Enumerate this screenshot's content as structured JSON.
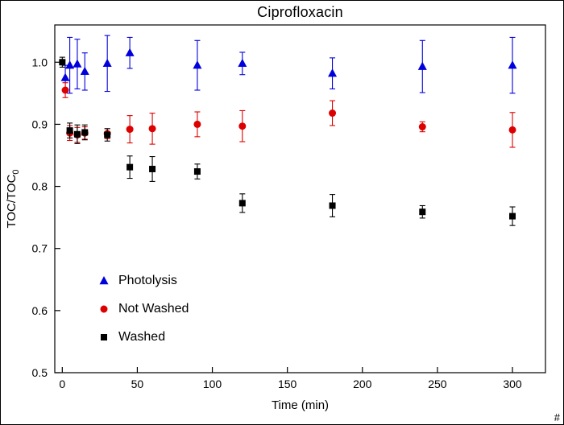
{
  "labels": {
    "ylabel_main": "TOC/TOC",
    "ylabel_sub": "0",
    "corner_mark": "#"
  },
  "chart_data": {
    "type": "scatter",
    "title": "Ciprofloxacin",
    "xlabel": "Time (min)",
    "ylabel": "TOC/TOC_0",
    "xlim": [
      -5,
      322
    ],
    "ylim": [
      0.5,
      1.06
    ],
    "xticks": [
      0,
      50,
      100,
      150,
      200,
      250,
      300
    ],
    "yticks": [
      0.5,
      0.6,
      0.7,
      0.8,
      0.9,
      1.0
    ],
    "grid": false,
    "legend_position": "inside lower-left",
    "error_bars": true,
    "series": [
      {
        "name": "Photolysis",
        "marker": "triangle",
        "color": "#0000DD",
        "points": [
          {
            "x": 2,
            "y": 0.975,
            "e": 0.02
          },
          {
            "x": 5,
            "y": 0.995,
            "e": 0.045
          },
          {
            "x": 10,
            "y": 0.997,
            "e": 0.04
          },
          {
            "x": 15,
            "y": 0.985,
            "e": 0.03
          },
          {
            "x": 30,
            "y": 0.998,
            "e": 0.045
          },
          {
            "x": 45,
            "y": 1.015,
            "e": 0.025
          },
          {
            "x": 90,
            "y": 0.995,
            "e": 0.04
          },
          {
            "x": 120,
            "y": 0.998,
            "e": 0.018
          },
          {
            "x": 180,
            "y": 0.982,
            "e": 0.025
          },
          {
            "x": 240,
            "y": 0.993,
            "e": 0.042
          },
          {
            "x": 300,
            "y": 0.995,
            "e": 0.045
          }
        ]
      },
      {
        "name": "Not Washed",
        "marker": "circle",
        "color": "#DD0000",
        "points": [
          {
            "x": 2,
            "y": 0.955,
            "e": 0.012
          },
          {
            "x": 5,
            "y": 0.886,
            "e": 0.012
          },
          {
            "x": 10,
            "y": 0.883,
            "e": 0.012
          },
          {
            "x": 15,
            "y": 0.886,
            "e": 0.01
          },
          {
            "x": 30,
            "y": 0.885,
            "e": 0.008
          },
          {
            "x": 45,
            "y": 0.892,
            "e": 0.022
          },
          {
            "x": 60,
            "y": 0.893,
            "e": 0.025
          },
          {
            "x": 90,
            "y": 0.9,
            "e": 0.02
          },
          {
            "x": 120,
            "y": 0.897,
            "e": 0.025
          },
          {
            "x": 180,
            "y": 0.918,
            "e": 0.02
          },
          {
            "x": 240,
            "y": 0.896,
            "e": 0.008
          },
          {
            "x": 300,
            "y": 0.891,
            "e": 0.028
          }
        ]
      },
      {
        "name": "Washed",
        "marker": "square",
        "color": "#000000",
        "points": [
          {
            "x": 0,
            "y": 1.0,
            "e": 0.008
          },
          {
            "x": 5,
            "y": 0.89,
            "e": 0.012
          },
          {
            "x": 10,
            "y": 0.884,
            "e": 0.015
          },
          {
            "x": 15,
            "y": 0.887,
            "e": 0.012
          },
          {
            "x": 30,
            "y": 0.883,
            "e": 0.01
          },
          {
            "x": 45,
            "y": 0.831,
            "e": 0.018
          },
          {
            "x": 60,
            "y": 0.828,
            "e": 0.02
          },
          {
            "x": 90,
            "y": 0.824,
            "e": 0.012
          },
          {
            "x": 120,
            "y": 0.773,
            "e": 0.015
          },
          {
            "x": 180,
            "y": 0.769,
            "e": 0.018
          },
          {
            "x": 240,
            "y": 0.759,
            "e": 0.01
          },
          {
            "x": 300,
            "y": 0.752,
            "e": 0.015
          }
        ]
      }
    ]
  }
}
